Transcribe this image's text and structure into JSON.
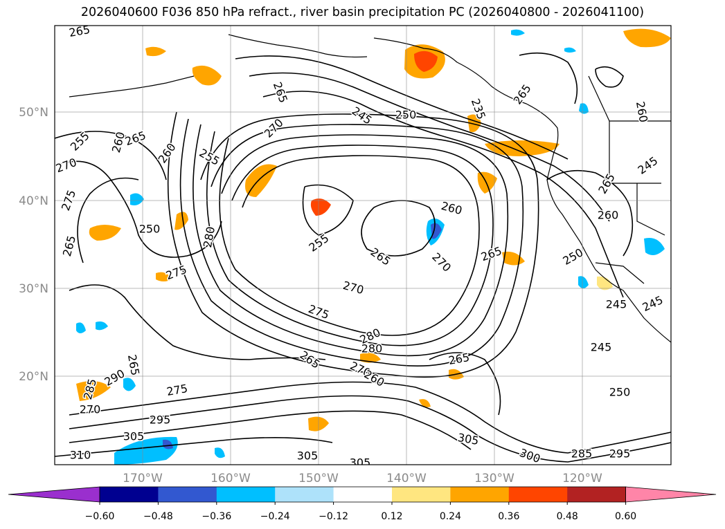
{
  "title": "2026040600 F036 850 hPa refract., river basin precipitation PC (2026040800 - 2026041100)",
  "map": {
    "lat_labels": [
      "50°N",
      "40°N",
      "30°N",
      "20°N"
    ],
    "lon_labels": [
      "170°W",
      "160°W",
      "150°W",
      "140°W",
      "130°W",
      "120°W"
    ],
    "contour_labels": [
      {
        "text": "265",
        "rot": -10
      },
      {
        "text": "265",
        "rot": 70
      },
      {
        "text": "245",
        "rot": 35
      },
      {
        "text": "250",
        "rot": 0
      },
      {
        "text": "235",
        "rot": 70
      },
      {
        "text": "265",
        "rot": -55
      },
      {
        "text": "260",
        "rot": 80
      },
      {
        "text": "270",
        "rot": -45
      },
      {
        "text": "255",
        "rot": 30
      },
      {
        "text": "265",
        "rot": -20
      },
      {
        "text": "260",
        "rot": -75
      },
      {
        "text": "255",
        "rot": -45
      },
      {
        "text": "270",
        "rot": -20
      },
      {
        "text": "275",
        "rot": -70
      },
      {
        "text": "265",
        "rot": -75
      },
      {
        "text": "250",
        "rot": 0
      },
      {
        "text": "280",
        "rot": -80
      },
      {
        "text": "275",
        "rot": -20
      },
      {
        "text": "260",
        "rot": -55
      },
      {
        "text": "255",
        "rot": -35
      },
      {
        "text": "265",
        "rot": 35
      },
      {
        "text": "270",
        "rot": 15
      },
      {
        "text": "275",
        "rot": 20
      },
      {
        "text": "260",
        "rot": 15
      },
      {
        "text": "270",
        "rot": 45
      },
      {
        "text": "265",
        "rot": -20
      },
      {
        "text": "280",
        "rot": -25
      },
      {
        "text": "280",
        "rot": 0
      },
      {
        "text": "270",
        "rot": 25
      },
      {
        "text": "260",
        "rot": 30
      },
      {
        "text": "265",
        "rot": 35
      },
      {
        "text": "265",
        "rot": -10
      },
      {
        "text": "265",
        "rot": -60
      },
      {
        "text": "260",
        "rot": 0
      },
      {
        "text": "250",
        "rot": -30
      },
      {
        "text": "245",
        "rot": 0
      },
      {
        "text": "245",
        "rot": -25
      },
      {
        "text": "245",
        "rot": 0
      },
      {
        "text": "250",
        "rot": 0
      },
      {
        "text": "245",
        "rot": -35
      },
      {
        "text": "265",
        "rot": 80
      },
      {
        "text": "285",
        "rot": -75
      },
      {
        "text": "290",
        "rot": -30
      },
      {
        "text": "270",
        "rot": 0
      },
      {
        "text": "275",
        "rot": -10
      },
      {
        "text": "295",
        "rot": 0
      },
      {
        "text": "305",
        "rot": 0
      },
      {
        "text": "310",
        "rot": 0
      },
      {
        "text": "305",
        "rot": 0
      },
      {
        "text": "305",
        "rot": 0
      },
      {
        "text": "305",
        "rot": 10
      },
      {
        "text": "300",
        "rot": 20
      },
      {
        "text": "285",
        "rot": 0
      },
      {
        "text": "295",
        "rot": 0
      }
    ]
  },
  "colorbar": {
    "tick_labels": [
      "−0.60",
      "−0.48",
      "−0.36",
      "−0.24",
      "−0.12",
      "0.12",
      "0.24",
      "0.36",
      "0.48",
      "0.60"
    ],
    "colors": [
      "#9a2fce",
      "#000090",
      "#3258d0",
      "#00bfff",
      "#aee2fa",
      "#ffffff",
      "#ffe680",
      "#ffa500",
      "#ff4500",
      "#b22222",
      "#ff85a8"
    ]
  }
}
